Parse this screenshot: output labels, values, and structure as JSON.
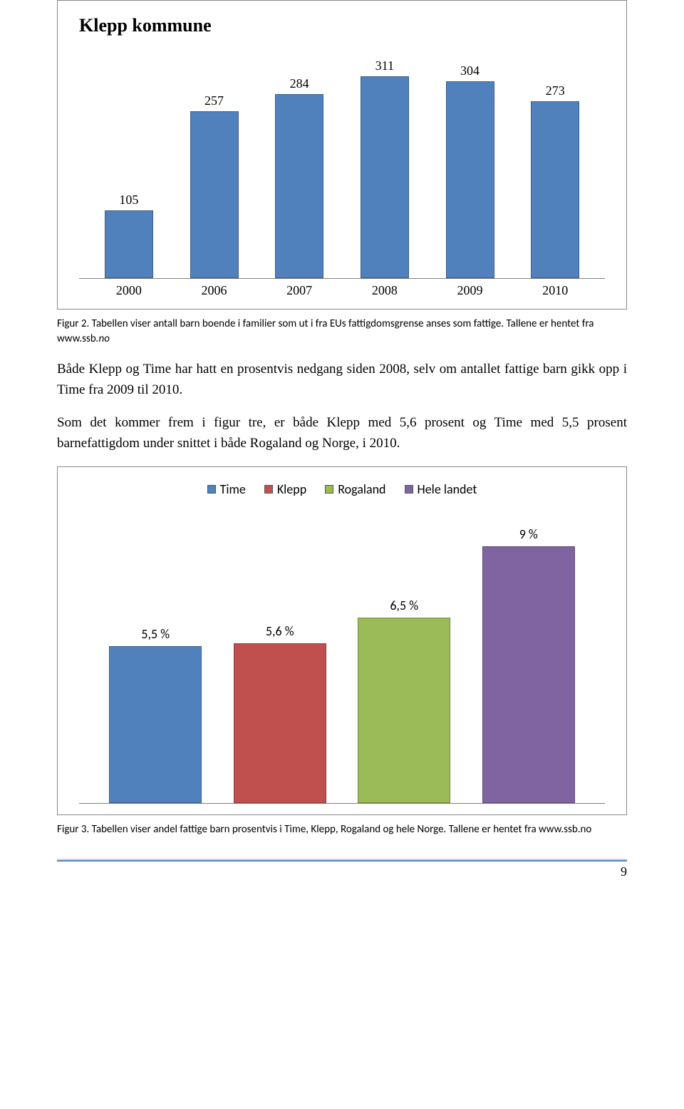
{
  "chart1": {
    "title": "Klepp kommune",
    "type": "bar",
    "categories": [
      "2000",
      "2006",
      "2007",
      "2008",
      "2009",
      "2010"
    ],
    "values": [
      105,
      257,
      284,
      311,
      304,
      273
    ],
    "bar_color": "#5081bd",
    "bar_border": "#3a5f8a",
    "max": 330,
    "title_fontsize": 26,
    "label_fontsize": 18,
    "background_color": "#ffffff",
    "axis_color": "#7f7f7f"
  },
  "caption1_prefix": "Figur 2. Tabellen viser antall barn boende i familier som ut i fra EUs fattigdomsgrense anses som fattige. Tallene er hentet fra www.ssb",
  "caption1_italic": ".no",
  "para1": "Både Klepp og Time har hatt en prosentvis nedgang siden 2008, selv om antallet fattige barn gikk opp i Time fra 2009 til 2010.",
  "para2": "Som det kommer frem i figur tre, er både Klepp med 5,6 prosent og Time med 5,5 prosent barnefattigdom under snittet i både Rogaland og Norge, i 2010.",
  "chart2": {
    "type": "bar",
    "legend": [
      {
        "label": "Time",
        "color": "#5081bd"
      },
      {
        "label": "Klepp",
        "color": "#bf504d"
      },
      {
        "label": "Rogaland",
        "color": "#9bba58"
      },
      {
        "label": "Hele landet",
        "color": "#8064a2"
      }
    ],
    "bars": [
      {
        "label": "5,5 %",
        "value": 5.5,
        "color": "#5081bd"
      },
      {
        "label": "5,6 %",
        "value": 5.6,
        "color": "#bf504d"
      },
      {
        "label": "6,5 %",
        "value": 6.5,
        "color": "#9bba58"
      },
      {
        "label": "9 %",
        "value": 9.0,
        "color": "#8064a2"
      }
    ],
    "max": 9.5,
    "label_fontsize": 18,
    "background_color": "#ffffff",
    "axis_color": "#7f7f7f"
  },
  "caption2": "Figur 3. Tabellen viser andel fattige barn prosentvis i Time, Klepp, Rogaland og hele Norge. Tallene er hentet fra www.ssb.no",
  "page_number": "9"
}
